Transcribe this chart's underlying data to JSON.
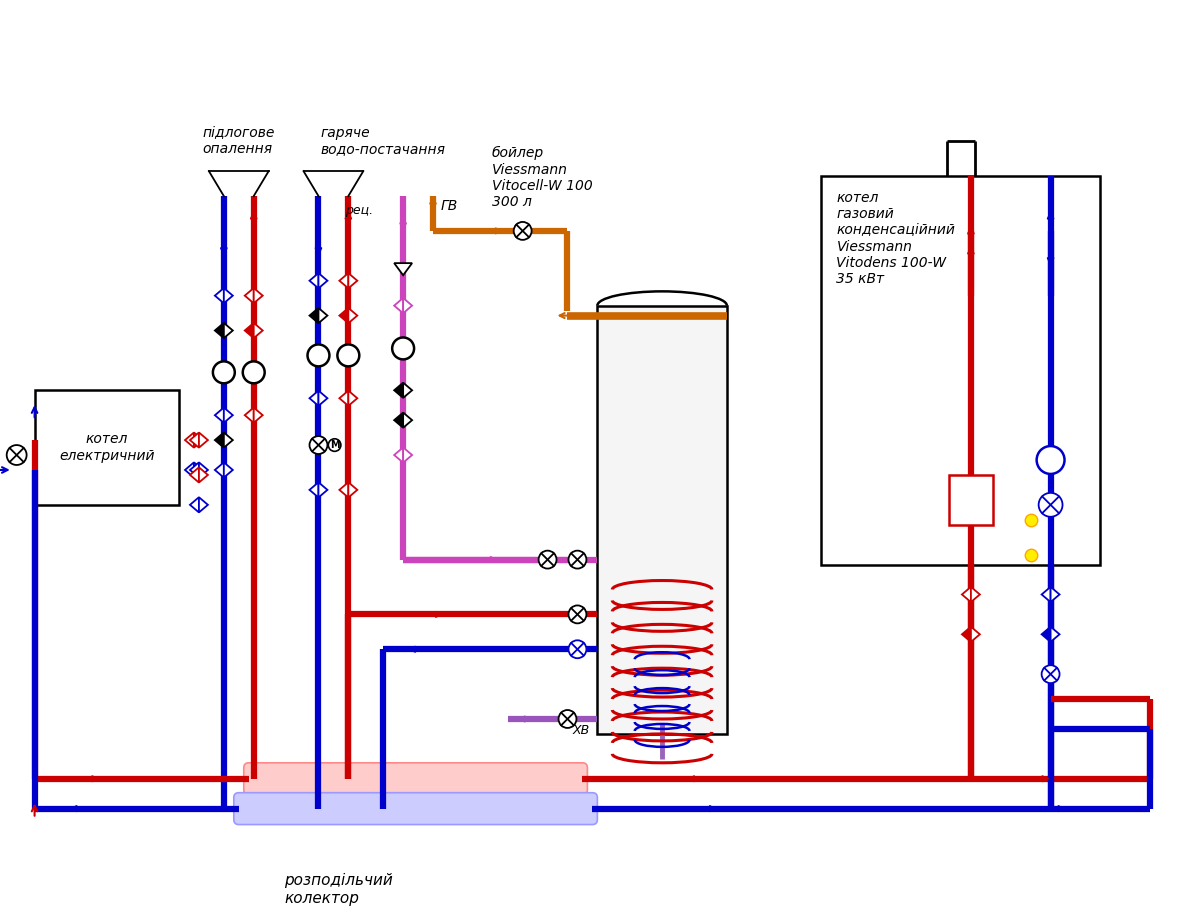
{
  "bg": "#ffffff",
  "R": "#cc0000",
  "B": "#0000cc",
  "P": "#cc44bb",
  "O": "#cc6600",
  "K": "#000000",
  "Y": "#ffee00",
  "figsize": [
    12.0,
    9.19
  ],
  "dpi": 100,
  "labels": {
    "floor_heat": "підлогове\nопалення",
    "hot_water": "гаряче\nводо-постачання",
    "boiler": "бойлер\nViessmann\nVitocell-W 100\n300 л",
    "gas_boiler": "котел\nгазовий\nконденсаційний\nViessmann\nVitodens 100-W\n35 кВт",
    "elec_boiler": "котел\nелектричний",
    "collector": "розподільчий\nколектор",
    "rec": "рец.",
    "gv": "ГВ",
    "xv": "ХВ"
  }
}
